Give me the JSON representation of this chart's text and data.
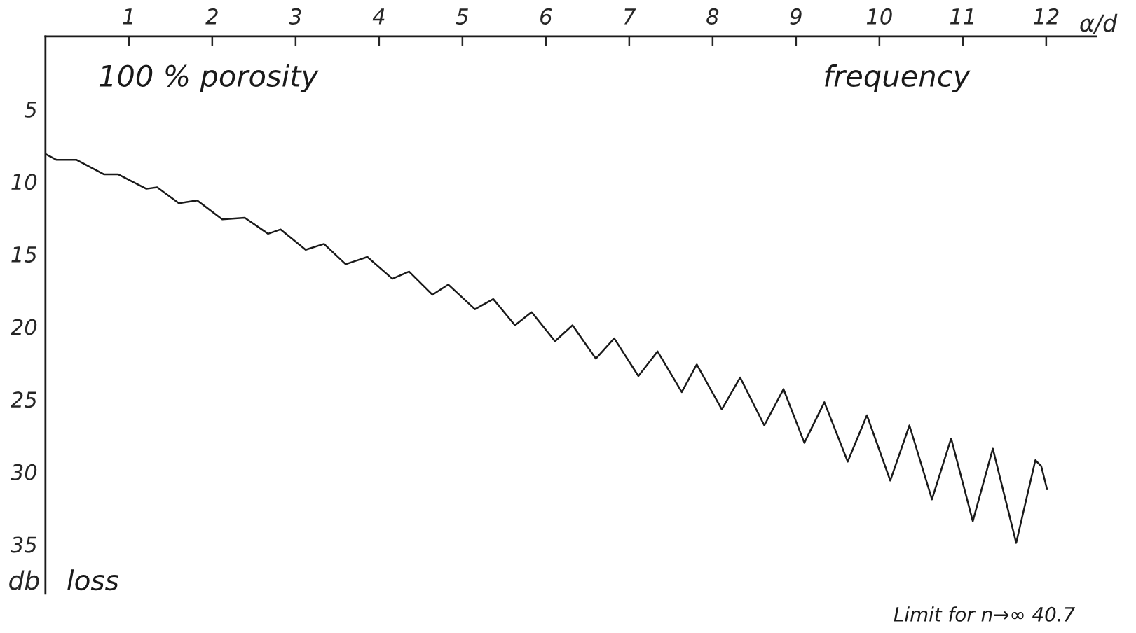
{
  "chart_data": {
    "type": "line",
    "xlabel": "α/d",
    "ylabel": "db",
    "annotations": [
      "100 % porosity",
      "frequency",
      "loss",
      "Limit for n→∞ 40.7"
    ],
    "x": [
      0,
      0.13,
      0.37,
      0.7,
      0.87,
      1.21,
      1.34,
      1.6,
      1.82,
      2.12,
      2.39,
      2.67,
      2.82,
      3.12,
      3.34,
      3.6,
      3.86,
      4.16,
      4.36,
      4.64,
      4.83,
      5.15,
      5.37,
      5.63,
      5.83,
      6.11,
      6.32,
      6.6,
      6.82,
      7.11,
      7.34,
      7.63,
      7.81,
      8.11,
      8.33,
      8.62,
      8.85,
      9.1,
      9.34,
      9.62,
      9.85,
      10.13,
      10.36,
      10.63,
      10.86,
      11.12,
      11.36,
      11.64,
      11.87,
      11.94,
      12.01
    ],
    "series": [
      {
        "color": "#1a1a1a",
        "values": [
          8.1,
          8.5,
          8.5,
          9.5,
          9.5,
          10.5,
          10.4,
          11.5,
          11.3,
          12.6,
          12.5,
          13.6,
          13.3,
          14.7,
          14.3,
          15.7,
          15.2,
          16.7,
          16.2,
          17.8,
          17.1,
          18.8,
          18.1,
          19.9,
          19.0,
          21.0,
          19.9,
          22.2,
          20.8,
          23.4,
          21.7,
          24.5,
          22.6,
          25.7,
          23.5,
          26.8,
          24.3,
          28.0,
          25.2,
          29.3,
          26.1,
          30.6,
          26.8,
          31.9,
          27.7,
          33.4,
          28.4,
          34.9,
          29.2,
          29.6,
          31.2
        ]
      }
    ],
    "xlim": [
      0,
      12.6
    ],
    "xticks": [
      1,
      2,
      3,
      4,
      5,
      6,
      7,
      8,
      9,
      10,
      11,
      12
    ],
    "ylim": [
      38.4,
      0
    ],
    "yticks": [
      5,
      10,
      15,
      20,
      25,
      30,
      35
    ],
    "grid": false,
    "marker": "none",
    "line_style": "solid"
  }
}
